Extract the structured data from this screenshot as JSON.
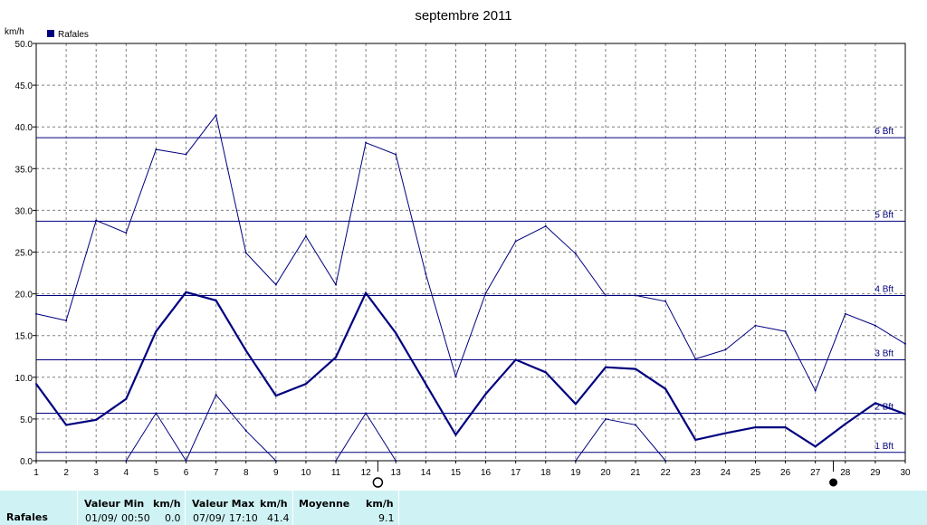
{
  "chart_data": {
    "type": "line",
    "title": "septembre 2011",
    "ylabel": "km/h",
    "legend": {
      "label": "Rafales",
      "placement": "top-left",
      "color": "#00007f"
    },
    "xlim": [
      1,
      30
    ],
    "ylim": [
      0,
      50
    ],
    "x_ticks": [
      1,
      2,
      3,
      4,
      5,
      6,
      7,
      8,
      9,
      10,
      11,
      12,
      13,
      14,
      15,
      16,
      17,
      18,
      19,
      20,
      21,
      22,
      23,
      24,
      25,
      26,
      27,
      28,
      29,
      30
    ],
    "y_ticks": [
      "0.0",
      "5.0",
      "10.0",
      "15.0",
      "20.0",
      "25.0",
      "30.0",
      "35.0",
      "40.0",
      "45.0",
      "50.0"
    ],
    "grid": true,
    "series": [
      {
        "name": "Rafales",
        "role": "max",
        "color": "#00007f",
        "x": [
          1,
          2,
          3,
          4,
          5,
          6,
          7,
          8,
          9,
          10,
          11,
          12,
          13,
          14,
          15,
          16,
          17,
          18,
          19,
          20,
          21,
          22,
          23,
          24,
          25,
          26,
          27,
          28,
          29,
          30
        ],
        "values": [
          17.6,
          16.8,
          28.8,
          27.3,
          37.3,
          36.7,
          41.4,
          24.9,
          21.1,
          26.9,
          21.1,
          38.1,
          36.7,
          22.4,
          10.1,
          20.1,
          26.3,
          28.1,
          24.8,
          19.8,
          19.8,
          19.1,
          12.2,
          13.3,
          16.2,
          15.5,
          8.4,
          17.6,
          16.2,
          14.0
        ]
      },
      {
        "name": "Rafales",
        "role": "average",
        "color": "#00007f",
        "x": [
          1,
          2,
          3,
          4,
          5,
          6,
          7,
          8,
          9,
          10,
          11,
          12,
          13,
          14,
          15,
          16,
          17,
          18,
          19,
          20,
          21,
          22,
          23,
          24,
          25,
          26,
          27,
          28,
          29,
          30
        ],
        "values": [
          9.2,
          4.3,
          4.9,
          7.4,
          15.5,
          20.2,
          19.2,
          13.2,
          7.8,
          9.2,
          12.4,
          20.1,
          15.3,
          9.2,
          3.1,
          8.0,
          12.1,
          10.6,
          6.8,
          11.2,
          11.0,
          8.6,
          2.5,
          3.3,
          4.0,
          4.0,
          1.7,
          4.4,
          6.9,
          5.6
        ]
      },
      {
        "name": "Rafales",
        "role": "min",
        "color": "#00007f",
        "x": [
          4,
          5,
          6,
          7,
          8,
          9
        ],
        "values": [
          0.0,
          5.7,
          0.0,
          7.9,
          3.6,
          0.0
        ]
      },
      {
        "name": "Rafales",
        "role": "min",
        "color": "#00007f",
        "x": [
          11,
          12,
          13
        ],
        "values": [
          0.0,
          5.7,
          0.0
        ]
      },
      {
        "name": "Rafales",
        "role": "min",
        "color": "#00007f",
        "x": [
          19,
          20,
          21,
          22
        ],
        "values": [
          0.0,
          5.0,
          4.3,
          0.0
        ]
      }
    ],
    "beaufort_lines": [
      {
        "label": "1 Bft",
        "value": 1.0
      },
      {
        "label": "2 Bft",
        "value": 5.7
      },
      {
        "label": "3 Bft",
        "value": 12.1
      },
      {
        "label": "4 Bft",
        "value": 19.8
      },
      {
        "label": "5 Bft",
        "value": 28.7
      },
      {
        "label": "6 Bft",
        "value": 38.7
      }
    ],
    "moon_phases": [
      {
        "x": 12.4,
        "phase": "full-moon"
      },
      {
        "x": 27.6,
        "phase": "new-moon"
      }
    ]
  },
  "summary": {
    "row_label": "Rafales",
    "min": {
      "header": "Valeur Min",
      "unit": "km/h",
      "date": "01/09/",
      "time": "00:50",
      "value": "0.0"
    },
    "max": {
      "header": "Valeur Max",
      "unit": "km/h",
      "date": "07/09/",
      "time": "17:10",
      "value": "41.4"
    },
    "avg": {
      "header": "Moyenne",
      "unit": "km/h",
      "value": "9.1"
    }
  }
}
